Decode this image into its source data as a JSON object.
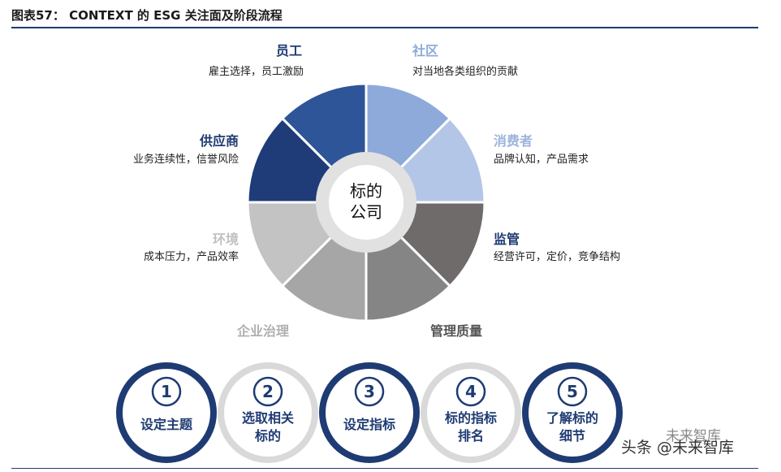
{
  "title": "图表57： CONTEXT 的 ESG 关注面及阶段流程",
  "center": {
    "line1": "标的",
    "line2": "公司"
  },
  "segments": [
    {
      "name": "员工",
      "desc": "雇主选择，员工激励",
      "color": "#2d5597",
      "label_color": "#1f3b73"
    },
    {
      "name": "社区",
      "desc": "对当地各类组织的贡献",
      "color": "#8eaadb",
      "label_color": "#8eaadb"
    },
    {
      "name": "消费者",
      "desc": "品牌认知，产品需求",
      "color": "#b4c6e7",
      "label_color": "#9db3dc"
    },
    {
      "name": "监管",
      "desc": "经营许可，定价，竞争结构",
      "color": "#6f6b6b",
      "label_color": "#1f3b73"
    },
    {
      "name": "管理质量",
      "desc": "",
      "color": "#868585",
      "label_color": "#555555"
    },
    {
      "name": "企业治理",
      "desc": "",
      "color": "#a6a6a6",
      "label_color": "#b0b0b0"
    },
    {
      "name": "环境",
      "desc": "成本压力，产品效率",
      "color": "#c3c3c3",
      "label_color": "#c0c0c0"
    },
    {
      "name": "供应商",
      "desc": "业务连续性，信誉风险",
      "color": "#1f3c78",
      "label_color": "#1f3b73"
    }
  ],
  "steps": [
    {
      "num": "1",
      "lines": [
        "设定主题"
      ],
      "ring": "#1f3b73"
    },
    {
      "num": "2",
      "lines": [
        "选取相关",
        "标的"
      ],
      "ring": "#d9d9d9"
    },
    {
      "num": "3",
      "lines": [
        "设定指标"
      ],
      "ring": "#1f3b73"
    },
    {
      "num": "4",
      "lines": [
        "标的指标",
        "排名"
      ],
      "ring": "#d9d9d9"
    },
    {
      "num": "5",
      "lines": [
        "了解标的",
        "细节"
      ],
      "ring": "#1f3b73"
    }
  ],
  "watermark": {
    "top": "未来智库",
    "bottom": "头条 @未来智库"
  },
  "colors": {
    "accent": "#1f3b73"
  }
}
